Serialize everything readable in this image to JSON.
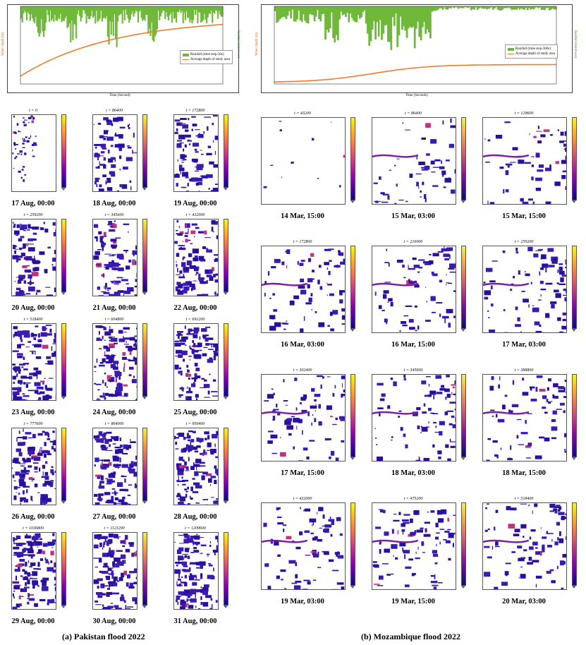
{
  "colors": {
    "rain": "#6fb83a",
    "depth": "#f07d2b",
    "map_fill": "#2a1a9a"
  },
  "chart_data": [
    {
      "type": "bar+line",
      "legend": [
        "Rainfall (time step-30s)",
        "Average depth of study area"
      ],
      "xlabel": "Time (Second)",
      "ylabel_left": "Water depth (m)",
      "ylabel_right": "Rainfall (mm/hour)",
      "legend_position": "right"
    },
    {
      "type": "bar+line",
      "legend": [
        "Rainfall (time step-300s)",
        "Average depth of study area"
      ],
      "xlabel": "Time (Seconds)",
      "ylabel_left": "Water depth (m)",
      "ylabel_right": "Rainfall (mm/hour)",
      "legend_position": "right"
    },
    {
      "type": "heatmap",
      "title": "Pakistan flood 2022",
      "panels": [
        {
          "t": "t = 0",
          "date": "17 Aug, 00:00"
        },
        {
          "t": "t = 86400",
          "date": "18 Aug, 00:00"
        },
        {
          "t": "t = 172800",
          "date": "19 Aug, 00:00"
        },
        {
          "t": "t = 259200",
          "date": "20 Aug, 00:00"
        },
        {
          "t": "t = 345600",
          "date": "21 Aug, 00:00"
        },
        {
          "t": "t = 432000",
          "date": "22 Aug, 00:00"
        },
        {
          "t": "t = 518400",
          "date": "23 Aug, 00:00"
        },
        {
          "t": "t = 604800",
          "date": "24 Aug, 00:00"
        },
        {
          "t": "t = 691200",
          "date": "25 Aug, 00:00"
        },
        {
          "t": "t = 777600",
          "date": "26 Aug, 00:00"
        },
        {
          "t": "t = 864000",
          "date": "27 Aug, 00:00"
        },
        {
          "t": "t = 950400",
          "date": "28 Aug, 00:00"
        },
        {
          "t": "t = 1036800",
          "date": "29 Aug, 00:00"
        },
        {
          "t": "t = 1123200",
          "date": "30 Aug, 00:00"
        },
        {
          "t": "t = 1209600",
          "date": "31 Aug, 00:00"
        }
      ]
    },
    {
      "type": "heatmap",
      "title": "Mozambique flood 2022",
      "panels": [
        {
          "t": "t = 43200",
          "date": "14 Mar, 15:00"
        },
        {
          "t": "t = 86400",
          "date": "15 Mar, 03:00"
        },
        {
          "t": "t = 129600",
          "date": "15 Mar, 15:00"
        },
        {
          "t": "t = 172800",
          "date": "16 Mar, 03:00"
        },
        {
          "t": "t = 216000",
          "date": "16 Mar, 15:00"
        },
        {
          "t": "t = 259200",
          "date": "17 Mar, 03:00"
        },
        {
          "t": "t = 302400",
          "date": "17 Mar, 15:00"
        },
        {
          "t": "t = 345600",
          "date": "18 Mar, 03:00"
        },
        {
          "t": "t = 388800",
          "date": "18 Mar, 15:00"
        },
        {
          "t": "t = 432000",
          "date": "19 Mar, 03:00"
        },
        {
          "t": "t = 475200",
          "date": "19 Mar, 15:00"
        },
        {
          "t": "t = 518400",
          "date": "20 Mar, 03:00"
        }
      ]
    }
  ],
  "captions": {
    "left": "(a) Pakistan flood 2022",
    "right": "(b) Mozambique flood 2022"
  }
}
